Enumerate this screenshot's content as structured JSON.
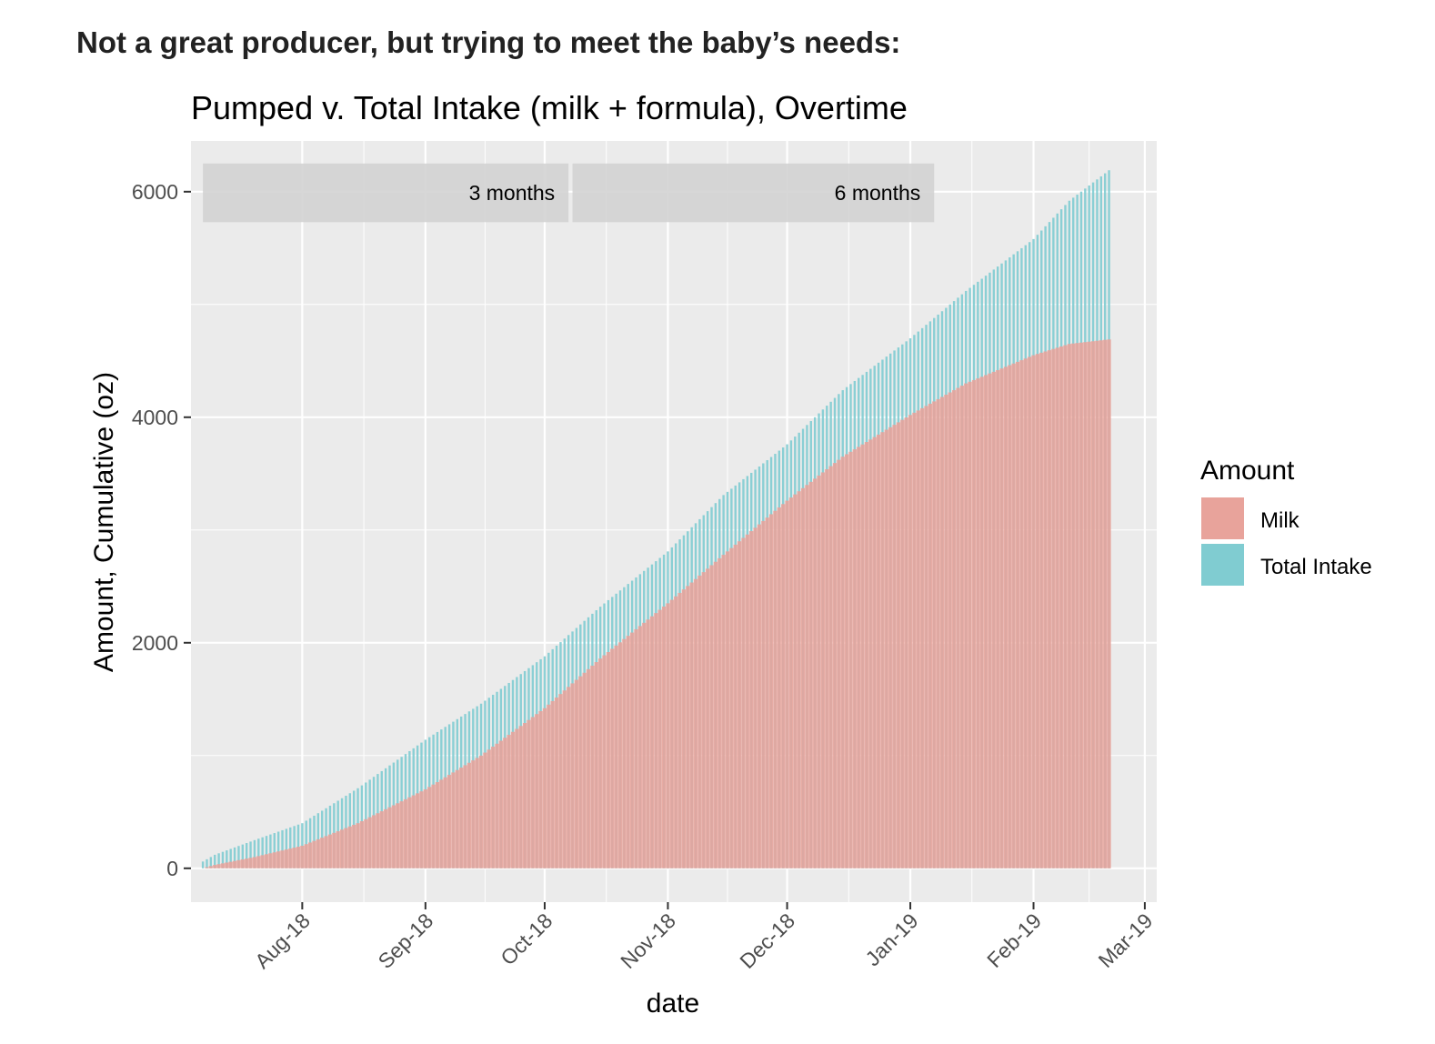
{
  "heading": "Not a great producer, but trying to meet the baby’s needs:",
  "chart_data": {
    "type": "bar",
    "title": "Pumped v. Total Intake (milk + formula), Overtime",
    "xlabel": "date",
    "ylabel": "Amount, Cumulative (oz)",
    "x_range": [
      "2018-07-04",
      "2019-03-04"
    ],
    "ylim": [
      -300,
      6450
    ],
    "yticks": [
      0,
      2000,
      4000,
      6000
    ],
    "ytick_labels": [
      "0",
      "2000",
      "4000",
      "6000"
    ],
    "xtick_labels": [
      "Aug-18",
      "Sep-18",
      "Oct-18",
      "Nov-18",
      "Dec-18",
      "Jan-19",
      "Feb-19",
      "Mar-19"
    ],
    "xtick_dates": [
      "2018-08-01",
      "2018-09-01",
      "2018-10-01",
      "2018-11-01",
      "2018-12-01",
      "2019-01-01",
      "2019-02-01",
      "2019-03-01"
    ],
    "series": [
      {
        "name": "Milk",
        "color": "#E8A39B",
        "points": [
          [
            "2018-07-07",
            0
          ],
          [
            "2018-07-10",
            30
          ],
          [
            "2018-07-20",
            100
          ],
          [
            "2018-08-01",
            200
          ],
          [
            "2018-08-15",
            400
          ],
          [
            "2018-09-01",
            700
          ],
          [
            "2018-09-15",
            1000
          ],
          [
            "2018-10-01",
            1420
          ],
          [
            "2018-10-15",
            1860
          ],
          [
            "2018-11-01",
            2350
          ],
          [
            "2018-11-15",
            2780
          ],
          [
            "2018-12-01",
            3260
          ],
          [
            "2018-12-15",
            3650
          ],
          [
            "2019-01-01",
            4020
          ],
          [
            "2019-01-15",
            4300
          ],
          [
            "2019-02-01",
            4550
          ],
          [
            "2019-02-10",
            4650
          ],
          [
            "2019-02-20",
            4690
          ]
        ]
      },
      {
        "name": "Total Intake",
        "color": "#80CCD1",
        "points": [
          [
            "2018-07-07",
            60
          ],
          [
            "2018-07-10",
            120
          ],
          [
            "2018-07-20",
            250
          ],
          [
            "2018-08-01",
            400
          ],
          [
            "2018-08-15",
            710
          ],
          [
            "2018-09-01",
            1140
          ],
          [
            "2018-09-15",
            1460
          ],
          [
            "2018-10-01",
            1880
          ],
          [
            "2018-10-15",
            2320
          ],
          [
            "2018-11-01",
            2810
          ],
          [
            "2018-11-15",
            3310
          ],
          [
            "2018-12-01",
            3760
          ],
          [
            "2018-12-15",
            4240
          ],
          [
            "2019-01-01",
            4700
          ],
          [
            "2019-01-15",
            5120
          ],
          [
            "2019-02-01",
            5580
          ],
          [
            "2019-02-10",
            5920
          ],
          [
            "2019-02-20",
            6190
          ]
        ]
      }
    ],
    "annotations": [
      {
        "label": "3 months",
        "start": "2018-07-07",
        "end": "2018-10-07",
        "y_range": [
          5730,
          6250
        ]
      },
      {
        "label": "6 months",
        "start": "2018-10-08",
        "end": "2019-01-07",
        "y_range": [
          5730,
          6250
        ]
      }
    ],
    "legend": {
      "title": "Amount",
      "position": "right",
      "entries": [
        "Milk",
        "Total Intake"
      ]
    }
  }
}
